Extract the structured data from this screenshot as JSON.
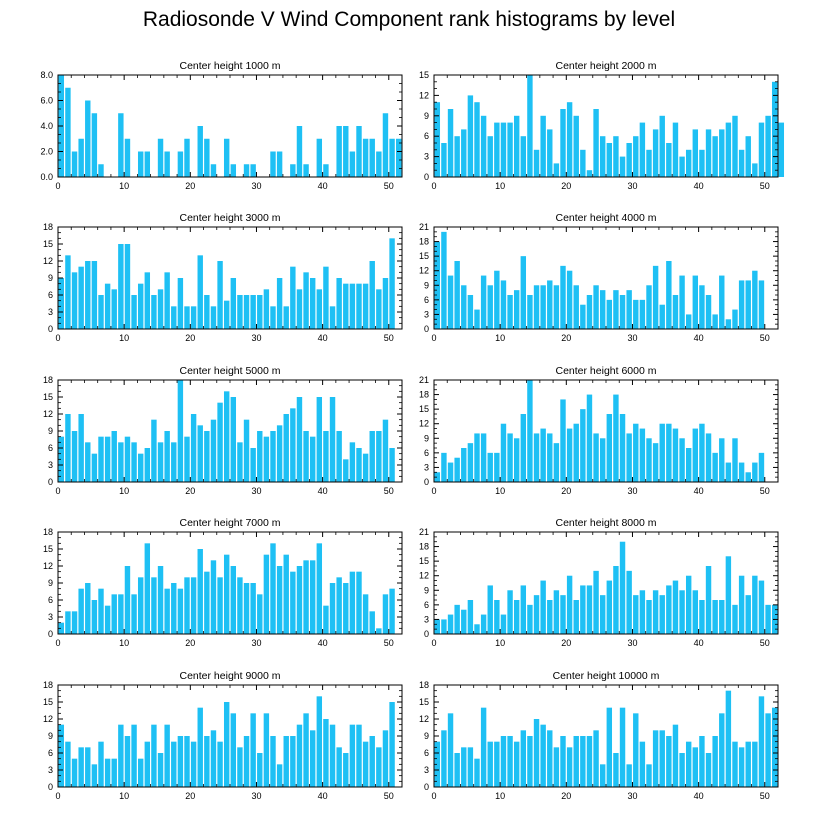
{
  "title": "Radiosonde V Wind Component rank histograms by level",
  "colors": {
    "bar": "#1ec0f4",
    "bar_edge": "#ffffff",
    "axis": "#000000"
  },
  "chart_data": [
    {
      "type": "bar",
      "title": "Center height 1000 m",
      "xlabel": "",
      "ylabel": "",
      "xlim": [
        0,
        52
      ],
      "ylim": [
        0,
        8
      ],
      "yticks": [
        0,
        2,
        4,
        6,
        8
      ],
      "ytick_format": "1dp",
      "xticks": [
        0,
        10,
        20,
        30,
        40,
        50
      ],
      "values": [
        8,
        7,
        2,
        3,
        6,
        5,
        1,
        0,
        0,
        5,
        3,
        0,
        2,
        2,
        0,
        3,
        2,
        0,
        2,
        3,
        0,
        4,
        3,
        1,
        0,
        3,
        1,
        0,
        1,
        1,
        0,
        0,
        2,
        2,
        0,
        1,
        4,
        1,
        0,
        3,
        1,
        0,
        4,
        4,
        2,
        4,
        3,
        3,
        2,
        5,
        3,
        3
      ]
    },
    {
      "type": "bar",
      "title": "Center height 2000 m",
      "xlabel": "",
      "ylabel": "",
      "xlim": [
        0,
        52
      ],
      "ylim": [
        0,
        15
      ],
      "yticks": [
        0,
        3,
        6,
        9,
        12,
        15
      ],
      "ytick_format": "int",
      "xticks": [
        0,
        10,
        20,
        30,
        40,
        50
      ],
      "values": [
        11,
        5,
        10,
        6,
        7,
        12,
        11,
        9,
        6,
        8,
        8,
        8,
        9,
        6,
        15,
        4,
        9,
        7,
        2,
        10,
        11,
        9,
        4,
        1,
        10,
        6,
        5,
        6,
        3,
        5,
        6,
        8,
        4,
        7,
        9,
        5,
        8,
        3,
        4,
        7,
        4,
        7,
        6,
        7,
        8,
        9,
        4,
        6,
        2,
        8,
        9,
        14,
        8
      ]
    },
    {
      "type": "bar",
      "title": "Center height 3000 m",
      "xlabel": "",
      "ylabel": "",
      "xlim": [
        0,
        52
      ],
      "ylim": [
        0,
        18
      ],
      "yticks": [
        0,
        3,
        6,
        9,
        12,
        15,
        18
      ],
      "ytick_format": "int",
      "xticks": [
        0,
        10,
        20,
        30,
        40,
        50
      ],
      "values": [
        9,
        13,
        10,
        11,
        12,
        12,
        6,
        8,
        7,
        15,
        15,
        6,
        8,
        10,
        6,
        7,
        10,
        4,
        9,
        4,
        4,
        13,
        6,
        4,
        12,
        5,
        9,
        6,
        6,
        6,
        6,
        7,
        4,
        9,
        4,
        11,
        7,
        10,
        9,
        7,
        11,
        4,
        9,
        8,
        8,
        8,
        8,
        12,
        7,
        9,
        16
      ]
    },
    {
      "type": "bar",
      "title": "Center height 4000 m",
      "xlabel": "",
      "ylabel": "",
      "xlim": [
        0,
        52
      ],
      "ylim": [
        0,
        21
      ],
      "yticks": [
        0,
        3,
        6,
        9,
        12,
        15,
        18,
        21
      ],
      "ytick_format": "int",
      "xticks": [
        0,
        10,
        20,
        30,
        40,
        50
      ],
      "values": [
        18,
        20,
        11,
        14,
        9,
        7,
        4,
        11,
        9,
        12,
        10,
        7,
        8,
        15,
        7,
        9,
        9,
        10,
        9,
        13,
        12,
        9,
        5,
        7,
        9,
        8,
        6,
        8,
        7,
        8,
        6,
        6,
        9,
        13,
        5,
        14,
        7,
        11,
        3,
        11,
        9,
        7,
        3,
        11,
        2,
        4,
        10,
        10,
        12,
        10
      ]
    },
    {
      "type": "bar",
      "title": "Center height 5000 m",
      "xlabel": "",
      "ylabel": "",
      "xlim": [
        0,
        52
      ],
      "ylim": [
        0,
        18
      ],
      "yticks": [
        0,
        3,
        6,
        9,
        12,
        15,
        18
      ],
      "ytick_format": "int",
      "xticks": [
        0,
        10,
        20,
        30,
        40,
        50
      ],
      "values": [
        8,
        12,
        9,
        12,
        7,
        5,
        8,
        8,
        9,
        7,
        8,
        7,
        5,
        6,
        11,
        7,
        9,
        7,
        18,
        8,
        12,
        10,
        9,
        11,
        14,
        16,
        15,
        7,
        11,
        6,
        9,
        8,
        9,
        10,
        12,
        13,
        15,
        9,
        8,
        15,
        9,
        15,
        9,
        4,
        7,
        6,
        5,
        9,
        9,
        11,
        6
      ]
    },
    {
      "type": "bar",
      "title": "Center height 6000 m",
      "xlabel": "",
      "ylabel": "",
      "xlim": [
        0,
        52
      ],
      "ylim": [
        0,
        21
      ],
      "yticks": [
        0,
        3,
        6,
        9,
        12,
        15,
        18,
        21
      ],
      "ytick_format": "int",
      "xticks": [
        0,
        10,
        20,
        30,
        40,
        50
      ],
      "values": [
        2,
        6,
        4,
        5,
        7,
        8,
        10,
        10,
        6,
        6,
        12,
        10,
        9,
        14,
        21,
        10,
        11,
        10,
        8,
        17,
        11,
        12,
        15,
        18,
        10,
        9,
        14,
        18,
        14,
        10,
        12,
        11,
        9,
        8,
        12,
        12,
        11,
        9,
        7,
        11,
        12,
        10,
        6,
        9,
        4,
        9,
        4,
        2,
        4,
        6
      ]
    },
    {
      "type": "bar",
      "title": "Center height 7000 m",
      "xlabel": "",
      "ylabel": "",
      "xlim": [
        0,
        52
      ],
      "ylim": [
        0,
        18
      ],
      "yticks": [
        0,
        3,
        6,
        9,
        12,
        15,
        18
      ],
      "ytick_format": "int",
      "xticks": [
        0,
        10,
        20,
        30,
        40,
        50
      ],
      "values": [
        2,
        4,
        4,
        8,
        9,
        6,
        8,
        5,
        7,
        7,
        12,
        7,
        10,
        16,
        10,
        12,
        8,
        9,
        8,
        10,
        10,
        15,
        11,
        13,
        10,
        14,
        12,
        10,
        9,
        9,
        7,
        14,
        16,
        12,
        14,
        11,
        12,
        13,
        13,
        16,
        5,
        9,
        10,
        9,
        11,
        11,
        7,
        4,
        1,
        7,
        8
      ]
    },
    {
      "type": "bar",
      "title": "Center height 8000 m",
      "xlabel": "",
      "ylabel": "",
      "xlim": [
        0,
        52
      ],
      "ylim": [
        0,
        21
      ],
      "yticks": [
        0,
        3,
        6,
        9,
        12,
        15,
        18,
        21
      ],
      "ytick_format": "int",
      "xticks": [
        0,
        10,
        20,
        30,
        40,
        50
      ],
      "values": [
        3,
        3,
        4,
        6,
        5,
        7,
        2,
        4,
        10,
        7,
        4,
        9,
        7,
        10,
        6,
        8,
        11,
        7,
        9,
        8,
        12,
        7,
        10,
        10,
        13,
        8,
        11,
        14,
        19,
        13,
        8,
        9,
        7,
        9,
        8,
        10,
        11,
        9,
        12,
        9,
        7,
        14,
        7,
        7,
        16,
        6,
        12,
        8,
        12,
        11,
        6,
        6
      ]
    },
    {
      "type": "bar",
      "title": "Center height 9000 m",
      "xlabel": "",
      "ylabel": "",
      "xlim": [
        0,
        52
      ],
      "ylim": [
        0,
        18
      ],
      "yticks": [
        0,
        3,
        6,
        9,
        12,
        15,
        18
      ],
      "ytick_format": "int",
      "xticks": [
        0,
        10,
        20,
        30,
        40,
        50
      ],
      "values": [
        11,
        8,
        5,
        7,
        7,
        4,
        8,
        5,
        5,
        11,
        9,
        11,
        5,
        8,
        11,
        6,
        11,
        8,
        9,
        9,
        8,
        14,
        9,
        10,
        8,
        15,
        13,
        7,
        9,
        13,
        6,
        13,
        9,
        4,
        9,
        9,
        11,
        13,
        10,
        16,
        12,
        11,
        7,
        6,
        11,
        11,
        8,
        9,
        7,
        10,
        15
      ]
    },
    {
      "type": "bar",
      "title": "Center height 10000 m",
      "xlabel": "",
      "ylabel": "",
      "xlim": [
        0,
        52
      ],
      "ylim": [
        0,
        18
      ],
      "yticks": [
        0,
        3,
        6,
        9,
        12,
        15,
        18
      ],
      "ytick_format": "int",
      "xticks": [
        0,
        10,
        20,
        30,
        40,
        50
      ],
      "values": [
        8,
        10,
        13,
        6,
        7,
        7,
        5,
        14,
        8,
        8,
        9,
        9,
        8,
        10,
        9,
        12,
        11,
        10,
        7,
        9,
        7,
        9,
        9,
        9,
        10,
        4,
        14,
        6,
        14,
        4,
        13,
        8,
        4,
        10,
        10,
        9,
        11,
        6,
        8,
        7,
        9,
        6,
        9,
        13,
        17,
        8,
        7,
        8,
        8,
        16,
        13,
        14
      ]
    }
  ]
}
